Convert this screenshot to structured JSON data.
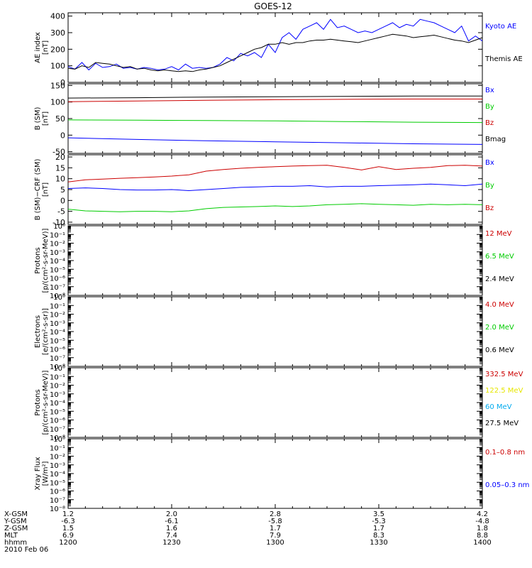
{
  "title": "GOES-12",
  "colors": {
    "black": "#000000",
    "blue": "#0000ff",
    "red": "#cc0000",
    "green": "#00cc00",
    "yellow": "#e6e600",
    "cyan": "#00aaee"
  },
  "x_axis": {
    "row_labels": [
      "X-GSM",
      "Y-GSM",
      "Z-GSM",
      "MLT",
      "hhmm",
      "2010 Feb 06"
    ],
    "columns": [
      {
        "value": 0,
        "labels": [
          "1.2",
          "-6.3",
          "1.5",
          "6.9",
          "1200"
        ]
      },
      {
        "value": 30,
        "labels": [
          "2.0",
          "-6.1",
          "1.6",
          "7.4",
          "1230"
        ]
      },
      {
        "value": 60,
        "labels": [
          "2.8",
          "-5.8",
          "1.7",
          "7.9",
          "1300"
        ]
      },
      {
        "value": 90,
        "labels": [
          "3.5",
          "-5.3",
          "1.7",
          "8.3",
          "1330"
        ]
      },
      {
        "value": 120,
        "labels": [
          "4.2",
          "-4.8",
          "1.8",
          "8.8",
          "1400"
        ]
      }
    ]
  },
  "chart_data": [
    {
      "type": "line",
      "ylabel": [
        "AE index",
        "[nT]"
      ],
      "ylim": [
        0,
        420
      ],
      "y_ticks": [
        "0",
        "100",
        "200",
        "300",
        "400"
      ],
      "y_tick_values": [
        0,
        100,
        200,
        300,
        400
      ],
      "xlim": [
        0,
        120
      ],
      "legend": [
        {
          "label": "Kyoto AE",
          "color": "#0000ff"
        },
        {
          "label": "Themis AE",
          "color": "#000000"
        }
      ],
      "series": [
        {
          "name": "Kyoto AE",
          "color": "#0000ff",
          "x": [
            0,
            2,
            4,
            6,
            8,
            10,
            12,
            14,
            16,
            18,
            20,
            22,
            24,
            26,
            28,
            30,
            32,
            34,
            36,
            38,
            40,
            42,
            44,
            46,
            48,
            50,
            52,
            54,
            56,
            58,
            60,
            62,
            64,
            66,
            68,
            70,
            72,
            74,
            76,
            78,
            80,
            82,
            84,
            86,
            88,
            90,
            92,
            94,
            96,
            98,
            100,
            102,
            104,
            106,
            108,
            110,
            112,
            114,
            116,
            118,
            120
          ],
          "y": [
            95,
            80,
            120,
            75,
            115,
            90,
            95,
            110,
            85,
            90,
            80,
            90,
            85,
            75,
            80,
            95,
            75,
            110,
            85,
            90,
            85,
            90,
            110,
            150,
            130,
            175,
            160,
            180,
            150,
            230,
            180,
            270,
            300,
            260,
            320,
            340,
            360,
            320,
            380,
            330,
            340,
            320,
            300,
            310,
            300,
            320,
            340,
            360,
            330,
            350,
            340,
            380,
            370,
            360,
            340,
            320,
            300,
            340,
            250,
            280,
            250
          ]
        },
        {
          "name": "Themis AE",
          "color": "#000000",
          "x": [
            0,
            2,
            4,
            6,
            8,
            10,
            12,
            14,
            16,
            18,
            20,
            22,
            24,
            26,
            28,
            30,
            32,
            34,
            36,
            38,
            40,
            42,
            44,
            46,
            48,
            50,
            52,
            54,
            56,
            58,
            60,
            62,
            64,
            66,
            68,
            70,
            72,
            74,
            76,
            78,
            80,
            82,
            84,
            86,
            88,
            90,
            92,
            94,
            96,
            98,
            100,
            102,
            104,
            106,
            108,
            110,
            112,
            114,
            116,
            118,
            120
          ],
          "y": [
            85,
            80,
            100,
            90,
            120,
            115,
            110,
            100,
            90,
            95,
            80,
            85,
            75,
            70,
            75,
            70,
            65,
            70,
            65,
            75,
            80,
            90,
            100,
            120,
            140,
            160,
            180,
            200,
            210,
            230,
            230,
            240,
            230,
            240,
            240,
            250,
            255,
            255,
            260,
            255,
            250,
            245,
            240,
            250,
            260,
            270,
            280,
            290,
            285,
            280,
            270,
            275,
            280,
            285,
            275,
            265,
            255,
            250,
            240,
            255,
            270
          ]
        }
      ]
    },
    {
      "type": "line",
      "ylabel": [
        "B (SM)",
        "[nT]"
      ],
      "ylim": [
        -55,
        155
      ],
      "y_ticks": [
        "-50",
        "0",
        "50",
        "100",
        "150"
      ],
      "y_tick_values": [
        -50,
        0,
        50,
        100,
        150
      ],
      "xlim": [
        0,
        120
      ],
      "legend": [
        {
          "label": "Bx",
          "color": "#0000ff"
        },
        {
          "label": "By",
          "color": "#00cc00"
        },
        {
          "label": "Bz",
          "color": "#cc0000"
        },
        {
          "label": "Bmag",
          "color": "#000000"
        }
      ],
      "series": [
        {
          "name": "Bmag",
          "color": "#000000",
          "x": [
            0,
            20,
            40,
            60,
            80,
            100,
            120
          ],
          "y": [
            112,
            113,
            115,
            116,
            117,
            118,
            118
          ]
        },
        {
          "name": "Bz",
          "color": "#cc0000",
          "x": [
            0,
            20,
            40,
            60,
            80,
            100,
            120
          ],
          "y": [
            101,
            103,
            105,
            107,
            108,
            109,
            109
          ]
        },
        {
          "name": "By",
          "color": "#00cc00",
          "x": [
            0,
            20,
            40,
            60,
            80,
            100,
            120
          ],
          "y": [
            46,
            45,
            44,
            43,
            41,
            39,
            38
          ]
        },
        {
          "name": "Bx",
          "color": "#0000ff",
          "x": [
            0,
            20,
            40,
            60,
            80,
            100,
            120
          ],
          "y": [
            -8,
            -13,
            -17,
            -20,
            -23,
            -26,
            -28
          ]
        }
      ]
    },
    {
      "type": "line",
      "ylabel": [
        "B (SM)−CRF (SM)",
        "[nT]"
      ],
      "ylim": [
        -11,
        21
      ],
      "y_ticks": [
        "-10",
        "-5",
        "0",
        "5",
        "10",
        "15",
        "20"
      ],
      "y_tick_values": [
        -10,
        -5,
        0,
        5,
        10,
        15,
        20
      ],
      "xlim": [
        0,
        120
      ],
      "legend": [
        {
          "label": "Bx",
          "color": "#0000ff"
        },
        {
          "label": "By",
          "color": "#00cc00"
        },
        {
          "label": "Bz",
          "color": "#cc0000"
        }
      ],
      "series": [
        {
          "name": "Bz",
          "color": "#cc0000",
          "x": [
            0,
            5,
            10,
            15,
            20,
            25,
            30,
            35,
            40,
            45,
            50,
            55,
            60,
            65,
            70,
            75,
            80,
            85,
            90,
            95,
            100,
            105,
            110,
            115,
            120
          ],
          "y": [
            8.5,
            9.5,
            9.8,
            10.2,
            10.5,
            10.8,
            11.2,
            11.8,
            13.5,
            14.2,
            14.8,
            15.2,
            15.5,
            15.8,
            16.0,
            16.2,
            15.2,
            14.0,
            15.5,
            14.2,
            14.8,
            15.2,
            16.0,
            16.2,
            15.8
          ]
        },
        {
          "name": "Bx",
          "color": "#0000ff",
          "x": [
            0,
            5,
            10,
            15,
            20,
            25,
            30,
            35,
            40,
            45,
            50,
            55,
            60,
            65,
            70,
            75,
            80,
            85,
            90,
            95,
            100,
            105,
            110,
            115,
            120
          ],
          "y": [
            5.5,
            5.8,
            5.5,
            5.0,
            4.8,
            4.8,
            5.0,
            4.5,
            5.0,
            5.5,
            6.0,
            6.2,
            6.5,
            6.5,
            6.8,
            6.2,
            6.5,
            6.5,
            6.8,
            7.0,
            7.2,
            7.5,
            7.2,
            6.8,
            7.5
          ]
        },
        {
          "name": "By",
          "color": "#00cc00",
          "x": [
            0,
            5,
            10,
            15,
            20,
            25,
            30,
            35,
            40,
            45,
            50,
            55,
            60,
            65,
            70,
            75,
            80,
            85,
            90,
            95,
            100,
            105,
            110,
            115,
            120
          ],
          "y": [
            -4.0,
            -4.8,
            -5.0,
            -5.2,
            -5.0,
            -5.0,
            -5.2,
            -4.8,
            -3.8,
            -3.2,
            -3.0,
            -2.8,
            -2.5,
            -2.8,
            -2.5,
            -2.0,
            -1.8,
            -1.5,
            -1.8,
            -2.0,
            -2.2,
            -1.8,
            -2.0,
            -1.8,
            -2.0
          ]
        }
      ]
    },
    {
      "type": "line",
      "ylabel": [
        "Protons",
        "[p/(cm²-s-sr-MeV)]"
      ],
      "scale": "log",
      "ylim": [
        1e-08,
        1
      ],
      "xlim": [
        0,
        120
      ],
      "y_ticks": [
        "10⁰",
        "10⁻¹",
        "10⁻²",
        "10⁻³",
        "10⁻⁴",
        "10⁻⁵",
        "10⁻⁶",
        "10⁻⁷",
        "10⁻⁸"
      ],
      "legend": [
        {
          "label": "12 MeV",
          "color": "#cc0000"
        },
        {
          "label": "6.5 MeV",
          "color": "#00cc00"
        },
        {
          "label": "2.4 MeV",
          "color": "#000000"
        }
      ],
      "series": []
    },
    {
      "type": "line",
      "ylabel": [
        "Electrons",
        "[e/(cm²-s-sr)]"
      ],
      "scale": "log",
      "ylim": [
        1e-08,
        1
      ],
      "xlim": [
        0,
        120
      ],
      "y_ticks": [
        "10⁰",
        "10⁻¹",
        "10⁻²",
        "10⁻³",
        "10⁻⁴",
        "10⁻⁵",
        "10⁻⁶",
        "10⁻⁷",
        "10⁻⁸"
      ],
      "legend": [
        {
          "label": "4.0 MeV",
          "color": "#cc0000"
        },
        {
          "label": "2.0 MeV",
          "color": "#00cc00"
        },
        {
          "label": "0.6 MeV",
          "color": "#000000"
        }
      ],
      "series": []
    },
    {
      "type": "line",
      "ylabel": [
        "Protons",
        "[p/(cm²-s-sr-MeV)]"
      ],
      "scale": "log",
      "ylim": [
        1e-08,
        1
      ],
      "xlim": [
        0,
        120
      ],
      "y_ticks": [
        "10⁰",
        "10⁻¹",
        "10⁻²",
        "10⁻³",
        "10⁻⁴",
        "10⁻⁵",
        "10⁻⁶",
        "10⁻⁷",
        "10⁻⁸"
      ],
      "legend": [
        {
          "label": "332.5 MeV",
          "color": "#cc0000"
        },
        {
          "label": "122.5 MeV",
          "color": "#e6e600"
        },
        {
          "label": "60 MeV",
          "color": "#00aaee"
        },
        {
          "label": "27.5 MeV",
          "color": "#000000"
        }
      ],
      "series": []
    },
    {
      "type": "line",
      "ylabel": [
        "Xray Flux",
        "[W/m²]"
      ],
      "scale": "log",
      "ylim": [
        1e-08,
        1
      ],
      "xlim": [
        0,
        120
      ],
      "y_ticks": [
        "10⁰",
        "10⁻¹",
        "10⁻²",
        "10⁻³",
        "10⁻⁴",
        "10⁻⁵",
        "10⁻⁶",
        "10⁻⁷",
        "10⁻⁸"
      ],
      "legend": [
        {
          "label": "0.1–0.8 nm",
          "color": "#cc0000"
        },
        {
          "label": "0.05–0.3 nm",
          "color": "#0000ff"
        }
      ],
      "series": []
    }
  ]
}
